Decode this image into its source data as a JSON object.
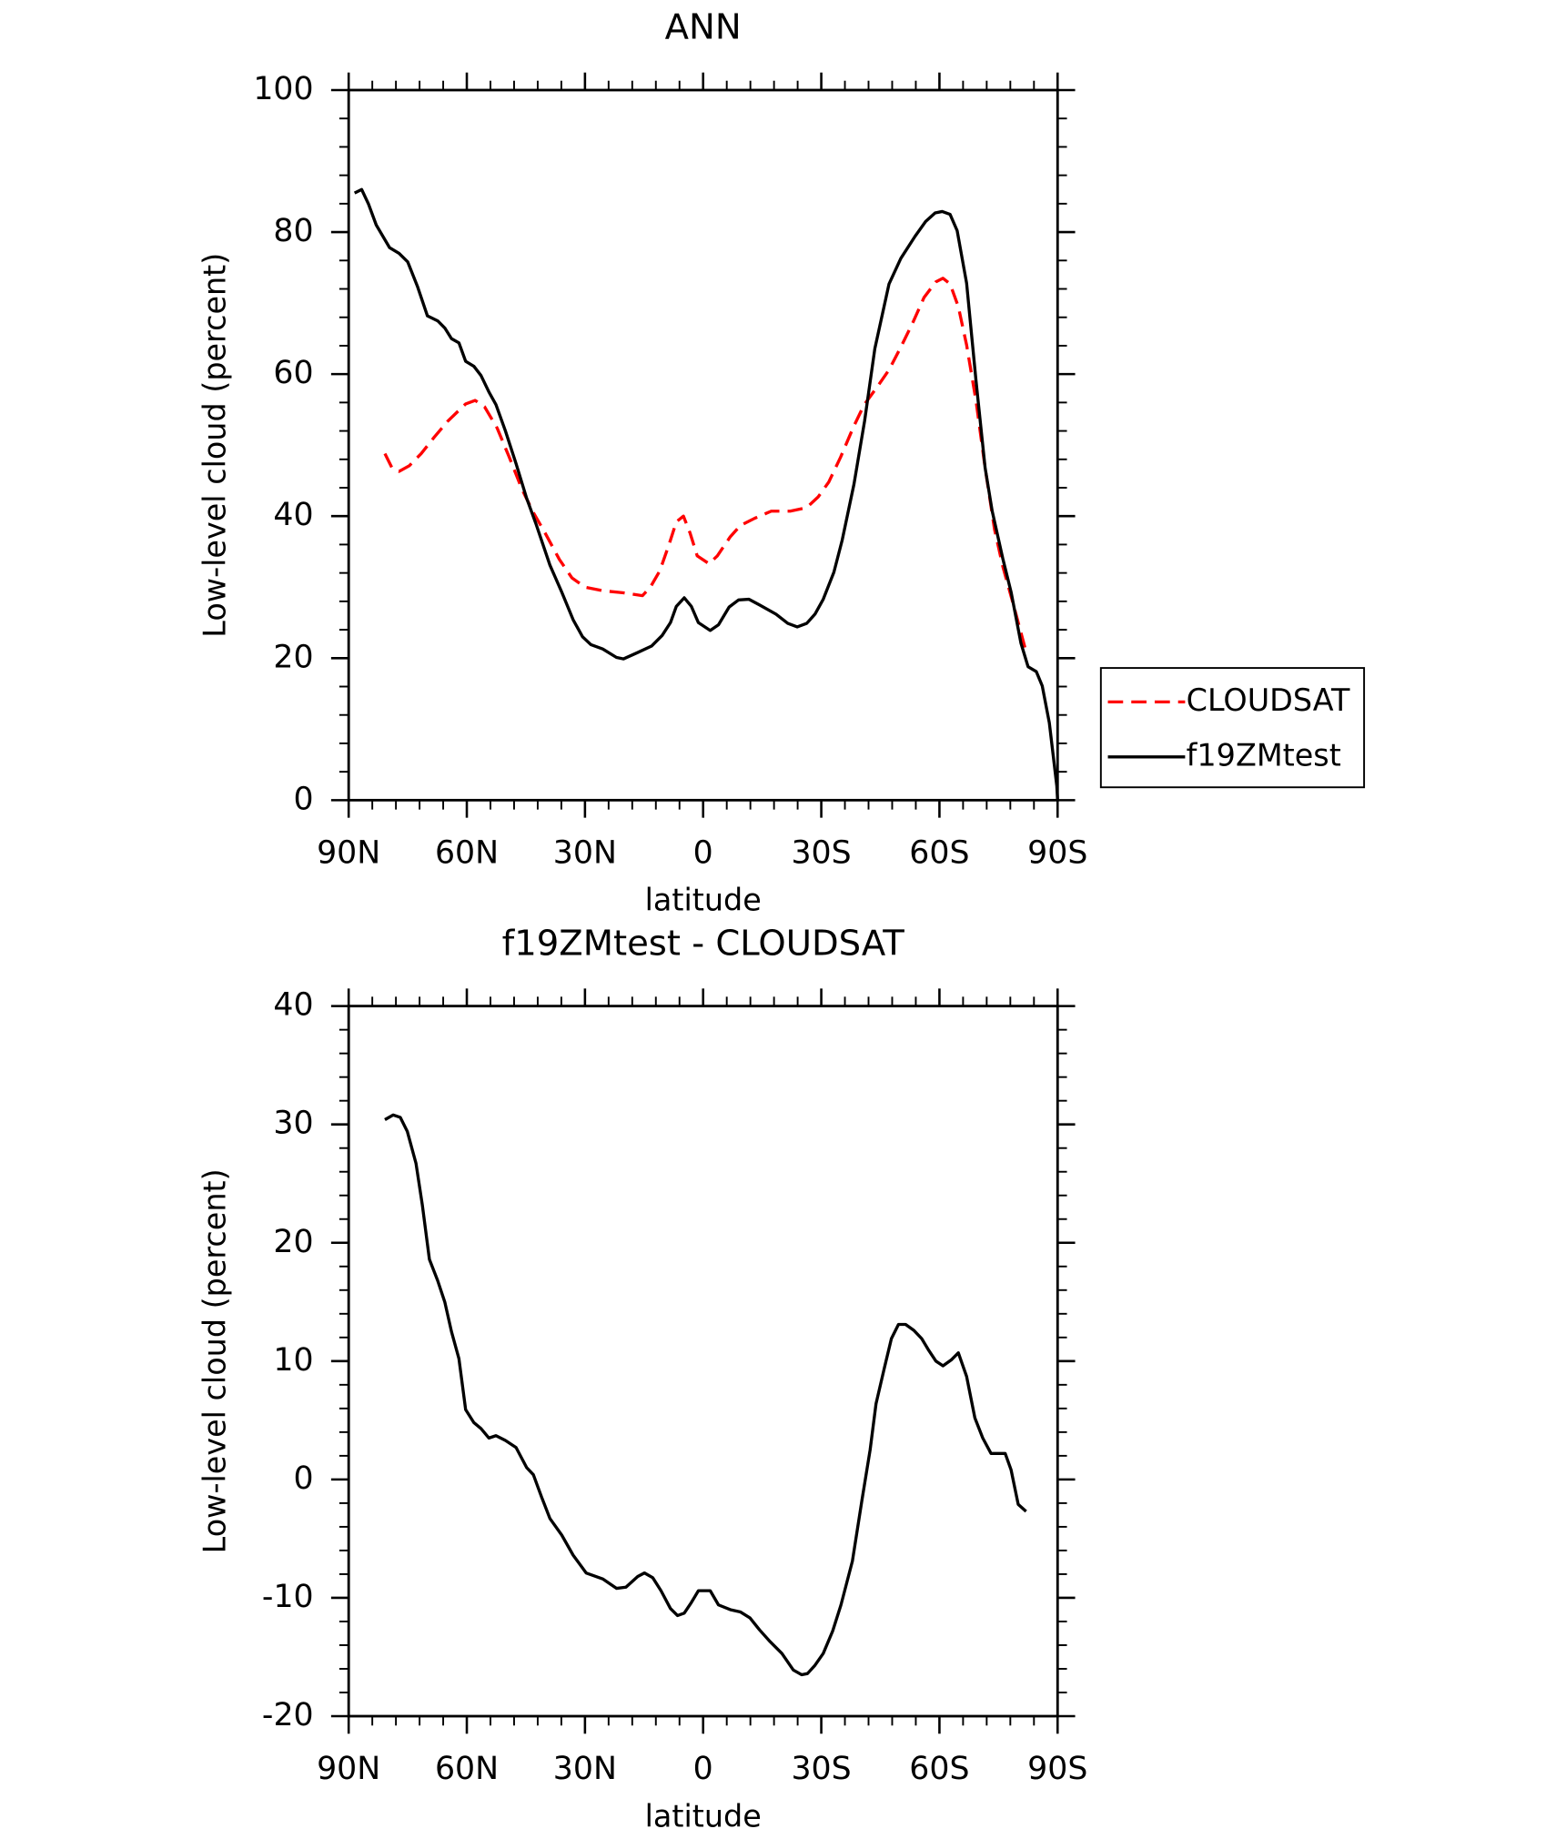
{
  "chart_data": [
    {
      "type": "line",
      "title": "ANN",
      "xlabel": "latitude",
      "ylabel": "Low-level cloud (percent)",
      "xlim": [
        90,
        -90
      ],
      "xticks": [
        {
          "value": 90,
          "label": "90N"
        },
        {
          "value": 60,
          "label": "60N"
        },
        {
          "value": 30,
          "label": "30N"
        },
        0,
        {
          "value": -30,
          "label": "30S"
        },
        {
          "value": -60,
          "label": "60S"
        },
        {
          "value": -90,
          "label": "90S"
        }
      ],
      "ylim": [
        0,
        100
      ],
      "yticks": [
        0,
        20,
        40,
        60,
        80,
        100
      ],
      "minor_subdivisions": {
        "x": 5,
        "y": 5
      },
      "legend": "right",
      "series": [
        {
          "name": "CLOUDSAT",
          "color": "#ff0000",
          "linestyle": "dashed",
          "x": [
            80.8,
            79,
            77.2,
            74.6,
            71.6,
            68.3,
            64.8,
            60.3,
            57.9,
            55.5,
            52.3,
            49.3,
            46,
            43.1,
            40.1,
            36.5,
            33.3,
            30,
            25.5,
            20.2,
            15.4,
            13.4,
            11,
            8.6,
            6.8,
            5,
            3.3,
            1.5,
            -1.5,
            -3.6,
            -6.9,
            -9.5,
            -13.1,
            -17.3,
            -22.1,
            -26.3,
            -29.2,
            -31.9,
            -34.9,
            -38.2,
            -40.9,
            -44.2,
            -47.2,
            -50.2,
            -53.2,
            -56.1,
            -59.1,
            -60.9,
            -62.7,
            -64.8,
            -66.9,
            -69.3,
            -71.6,
            -74,
            -76.1,
            -78.8,
            -82
          ],
          "values": [
            48.8,
            46.8,
            46.3,
            47.1,
            48.8,
            51.1,
            53.4,
            55.8,
            56.3,
            55.4,
            52.4,
            48.4,
            43.8,
            40.5,
            37.6,
            33.9,
            31.3,
            30,
            29.5,
            29.2,
            28.8,
            30,
            32.3,
            36.1,
            39.2,
            40,
            37.6,
            34.4,
            33.3,
            34.4,
            37.1,
            38.7,
            39.7,
            40.7,
            40.7,
            41.2,
            42.7,
            44.8,
            48.3,
            52.6,
            55.7,
            58.2,
            60.6,
            63.8,
            67.2,
            70.8,
            73,
            73.5,
            72.7,
            69.5,
            64.1,
            56.2,
            46.8,
            38.1,
            32.9,
            27.5,
            20.9
          ]
        },
        {
          "name": "f19ZMtest",
          "color": "#000000",
          "linestyle": "solid",
          "x": [
            88.5,
            86.7,
            85,
            83,
            79.6,
            77.2,
            75,
            72.5,
            70,
            67.4,
            65.6,
            63.9,
            62,
            60.3,
            58.2,
            56.4,
            54.4,
            52.6,
            50.2,
            47.5,
            44.8,
            42.5,
            38.9,
            35.9,
            33,
            30.6,
            28.5,
            25.5,
            22,
            20.2,
            16.6,
            13.1,
            10.4,
            8.3,
            6.8,
            4.8,
            3,
            1.2,
            -1.8,
            -3.9,
            -6.6,
            -9,
            -11.6,
            -14.3,
            -18.5,
            -21.5,
            -23.9,
            -26.3,
            -28.4,
            -30.5,
            -33.2,
            -35.3,
            -38.3,
            -41,
            -43.6,
            -47.2,
            -50.2,
            -53.8,
            -56.5,
            -58.9,
            -60.7,
            -62.7,
            -64.5,
            -66.9,
            -69.3,
            -71.6,
            -73.4,
            -76.1,
            -78.2,
            -80.7,
            -82.5,
            -84.6,
            -86.1,
            -87.9,
            -89.8,
            -90
          ],
          "values": [
            85.5,
            86,
            84,
            81,
            77.8,
            77,
            75.8,
            72.3,
            68.2,
            67.5,
            66.5,
            65,
            64.4,
            61.8,
            61.1,
            59.8,
            57.5,
            55.7,
            52,
            47.4,
            42.5,
            39,
            33.1,
            29.3,
            25.4,
            23,
            21.9,
            21.3,
            20.1,
            19.9,
            20.8,
            21.7,
            23.2,
            25,
            27.3,
            28.5,
            27.3,
            25,
            23.9,
            24.7,
            27.2,
            28.2,
            28.3,
            27.5,
            26.2,
            24.9,
            24.4,
            24.9,
            26.2,
            28.3,
            32.1,
            36.6,
            44.5,
            53.4,
            63.6,
            72.7,
            76.3,
            79.4,
            81.5,
            82.7,
            82.9,
            82.5,
            80.2,
            72.8,
            59,
            46.8,
            40.7,
            34,
            29.3,
            22.1,
            18.8,
            18.1,
            16.1,
            10.9,
            2,
            0
          ]
        }
      ]
    },
    {
      "type": "line",
      "title": "f19ZMtest - CLOUDSAT",
      "xlabel": "latitude",
      "ylabel": "Low-level cloud (percent)",
      "xlim": [
        90,
        -90
      ],
      "xticks": [
        {
          "value": 90,
          "label": "90N"
        },
        {
          "value": 60,
          "label": "60N"
        },
        {
          "value": 30,
          "label": "30N"
        },
        0,
        {
          "value": -30,
          "label": "30S"
        },
        {
          "value": -60,
          "label": "60S"
        },
        {
          "value": -90,
          "label": "90S"
        }
      ],
      "ylim": [
        -20,
        40
      ],
      "yticks": [
        -20,
        -10,
        0,
        10,
        20,
        30,
        40
      ],
      "minor_subdivisions": {
        "x": 5,
        "y": 5
      },
      "color": "#000000",
      "linestyle": "solid",
      "x": [
        80.8,
        78.7,
        76.9,
        75.1,
        72.9,
        71.3,
        69.5,
        67.4,
        65.6,
        63.9,
        62,
        60.3,
        58.2,
        56.4,
        54.4,
        52.6,
        50.2,
        47.5,
        44.8,
        43.1,
        41,
        38.9,
        35.9,
        33,
        29.7,
        25.5,
        22,
        19.6,
        16.6,
        14.9,
        12.8,
        10.7,
        8.3,
        6.5,
        4.8,
        3,
        1.2,
        -1.8,
        -3.9,
        -6.9,
        -9.5,
        -11.9,
        -14.3,
        -17,
        -20,
        -22.9,
        -25,
        -26.5,
        -28.4,
        -30.5,
        -32.9,
        -35,
        -37.9,
        -40.3,
        -42.4,
        -43.9,
        -46,
        -47.8,
        -49.6,
        -51.4,
        -53.5,
        -55.5,
        -57.3,
        -59.1,
        -60.9,
        -63,
        -64.8,
        -66.9,
        -69,
        -71,
        -73.1,
        -75.2,
        -76.7,
        -78.2,
        -80,
        -82
      ],
      "values": [
        30.4,
        30.8,
        30.6,
        29.4,
        26.7,
        23.2,
        18.6,
        16.8,
        15,
        12.5,
        10.2,
        5.9,
        4.8,
        4.3,
        3.5,
        3.7,
        3.3,
        2.7,
        1,
        0.4,
        -1.5,
        -3.3,
        -4.7,
        -6.4,
        -7.9,
        -8.4,
        -9.2,
        -9.1,
        -8.2,
        -7.9,
        -8.3,
        -9.4,
        -10.9,
        -11.5,
        -11.3,
        -10.4,
        -9.4,
        -9.4,
        -10.6,
        -11,
        -11.2,
        -11.7,
        -12.7,
        -13.7,
        -14.7,
        -16.1,
        -16.5,
        -16.4,
        -15.7,
        -14.7,
        -12.8,
        -10.6,
        -6.9,
        -1.8,
        2.5,
        6.4,
        9.4,
        11.9,
        13.1,
        13.1,
        12.6,
        11.9,
        10.9,
        10,
        9.6,
        10.1,
        10.7,
        8.7,
        5.2,
        3.5,
        2.2,
        2.2,
        2.2,
        0.8,
        -2.1,
        -2.7
      ]
    }
  ]
}
